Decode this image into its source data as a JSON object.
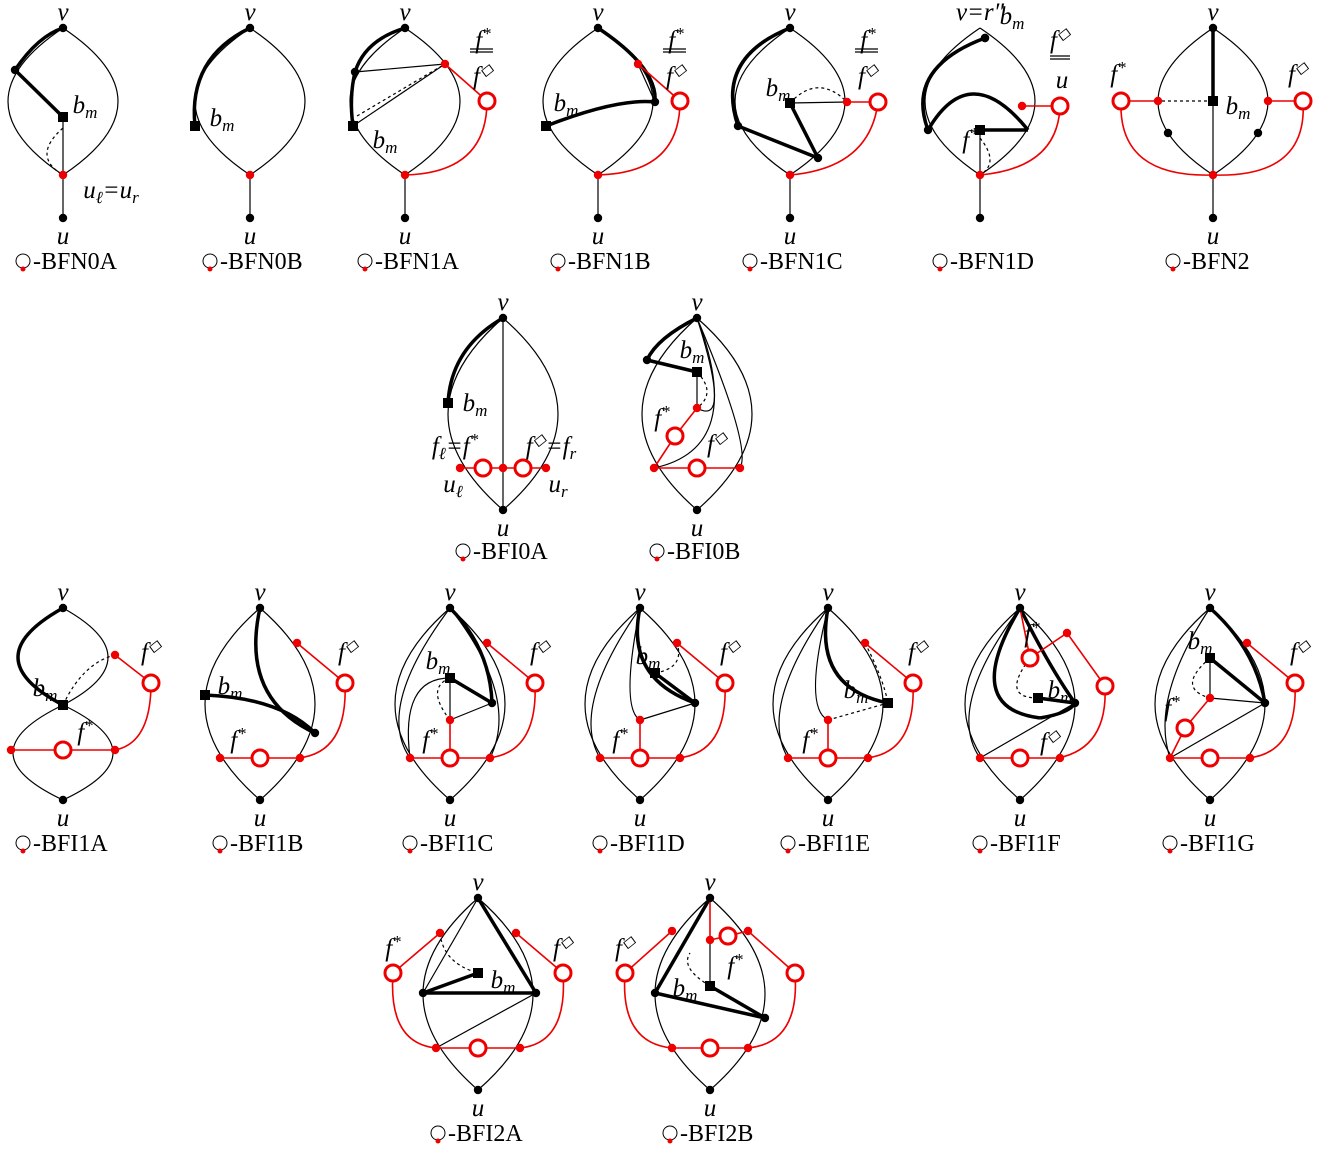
{
  "panels": [
    {
      "caption": "-BFN0A",
      "labels": [
        {
          "parts": [
            {
              "t": "v"
            }
          ]
        },
        {
          "parts": [
            {
              "t": "b"
            },
            {
              "sub": "m"
            }
          ]
        },
        {
          "parts": [
            {
              "t": "u"
            },
            {
              "sub": "ℓ"
            },
            {
              "t": "=u"
            },
            {
              "sub": "r"
            }
          ]
        },
        {
          "parts": [
            {
              "t": "u"
            }
          ]
        }
      ]
    },
    {
      "caption": "-BFN0B",
      "labels": [
        {
          "parts": [
            {
              "t": "v"
            }
          ]
        },
        {
          "parts": [
            {
              "t": "b"
            },
            {
              "sub": "m"
            }
          ]
        },
        {
          "parts": [
            {
              "t": "u"
            }
          ]
        }
      ]
    },
    {
      "caption": "-BFN1A",
      "labels": [
        {
          "parts": [
            {
              "t": "v"
            }
          ]
        },
        {
          "parts": [
            {
              "t": "b"
            },
            {
              "sub": "m"
            }
          ]
        },
        {
          "parts": [
            {
              "t": "f"
            },
            {
              "sup": "*"
            }
          ]
        },
        {
          "parts": [
            {
              "t": "f"
            },
            {
              "sup": "◇"
            }
          ]
        },
        {
          "parts": [
            {
              "t": "u"
            }
          ]
        }
      ]
    },
    {
      "caption": "-BFN1B",
      "labels": [
        {
          "parts": [
            {
              "t": "v"
            }
          ]
        },
        {
          "parts": [
            {
              "t": "b"
            },
            {
              "sub": "m"
            }
          ]
        },
        {
          "parts": [
            {
              "t": "f"
            },
            {
              "sup": "*"
            }
          ]
        },
        {
          "parts": [
            {
              "t": "f"
            },
            {
              "sup": "◇"
            }
          ]
        },
        {
          "parts": [
            {
              "t": "u"
            }
          ]
        }
      ]
    },
    {
      "caption": "-BFN1C",
      "labels": [
        {
          "parts": [
            {
              "t": "v"
            }
          ]
        },
        {
          "parts": [
            {
              "t": "b"
            },
            {
              "sub": "m"
            }
          ]
        },
        {
          "parts": [
            {
              "t": "f"
            },
            {
              "sup": "*"
            }
          ]
        },
        {
          "parts": [
            {
              "t": "f"
            },
            {
              "sup": "◇"
            }
          ]
        },
        {
          "parts": [
            {
              "t": "u"
            }
          ]
        }
      ]
    },
    {
      "caption": "-BFN1D",
      "labels": [
        {
          "parts": [
            {
              "t": "v=r″"
            }
          ]
        },
        {
          "parts": [
            {
              "t": "b"
            },
            {
              "sub": "m"
            }
          ]
        },
        {
          "parts": [
            {
              "t": "f"
            },
            {
              "sup": "*"
            }
          ]
        },
        {
          "parts": [
            {
              "t": "f"
            },
            {
              "sup": "◇"
            }
          ]
        },
        {
          "parts": [
            {
              "t": "u"
            }
          ]
        }
      ]
    },
    {
      "caption": "-BFN2",
      "labels": [
        {
          "parts": [
            {
              "t": "v"
            }
          ]
        },
        {
          "parts": [
            {
              "t": "f"
            },
            {
              "sup": "*"
            }
          ]
        },
        {
          "parts": [
            {
              "t": "b"
            },
            {
              "sub": "m"
            }
          ]
        },
        {
          "parts": [
            {
              "t": "f"
            },
            {
              "sup": "◇"
            }
          ]
        },
        {
          "parts": [
            {
              "t": "u"
            }
          ]
        }
      ]
    },
    {
      "caption": "-BFI0A",
      "labels": [
        {
          "parts": [
            {
              "t": "v"
            }
          ]
        },
        {
          "parts": [
            {
              "t": "b"
            },
            {
              "sub": "m"
            }
          ]
        },
        {
          "parts": [
            {
              "t": "f"
            },
            {
              "sub": "ℓ"
            },
            {
              "t": "=f"
            },
            {
              "sup": "*"
            }
          ]
        },
        {
          "parts": [
            {
              "t": "f"
            },
            {
              "sup": "◇"
            },
            {
              "t": "=f"
            },
            {
              "sub": "r"
            }
          ]
        },
        {
          "parts": [
            {
              "t": "u"
            },
            {
              "sub": "ℓ"
            }
          ]
        },
        {
          "parts": [
            {
              "t": "u"
            },
            {
              "sub": "r"
            }
          ]
        },
        {
          "parts": [
            {
              "t": "u"
            }
          ]
        }
      ]
    },
    {
      "caption": "-BFI0B",
      "labels": [
        {
          "parts": [
            {
              "t": "v"
            }
          ]
        },
        {
          "parts": [
            {
              "t": "b"
            },
            {
              "sub": "m"
            }
          ]
        },
        {
          "parts": [
            {
              "t": "f"
            },
            {
              "sup": "*"
            }
          ]
        },
        {
          "parts": [
            {
              "t": "f"
            },
            {
              "sup": "◇"
            }
          ]
        },
        {
          "parts": [
            {
              "t": "u"
            }
          ]
        }
      ]
    },
    {
      "caption": "-BFI1A",
      "labels": [
        {
          "parts": [
            {
              "t": "v"
            }
          ]
        },
        {
          "parts": [
            {
              "t": "b"
            },
            {
              "sub": "m"
            }
          ]
        },
        {
          "parts": [
            {
              "t": "f"
            },
            {
              "sup": "◇"
            }
          ]
        },
        {
          "parts": [
            {
              "t": "f"
            },
            {
              "sup": "*"
            }
          ]
        },
        {
          "parts": [
            {
              "t": "u"
            }
          ]
        }
      ]
    },
    {
      "caption": "-BFI1B",
      "labels": [
        {
          "parts": [
            {
              "t": "v"
            }
          ]
        },
        {
          "parts": [
            {
              "t": "b"
            },
            {
              "sub": "m"
            }
          ]
        },
        {
          "parts": [
            {
              "t": "f"
            },
            {
              "sup": "◇"
            }
          ]
        },
        {
          "parts": [
            {
              "t": "f"
            },
            {
              "sup": "*"
            }
          ]
        },
        {
          "parts": [
            {
              "t": "u"
            }
          ]
        }
      ]
    },
    {
      "caption": "-BFI1C",
      "labels": [
        {
          "parts": [
            {
              "t": "v"
            }
          ]
        },
        {
          "parts": [
            {
              "t": "b"
            },
            {
              "sub": "m"
            }
          ]
        },
        {
          "parts": [
            {
              "t": "f"
            },
            {
              "sup": "*"
            }
          ]
        },
        {
          "parts": [
            {
              "t": "f"
            },
            {
              "sup": "◇"
            }
          ]
        },
        {
          "parts": [
            {
              "t": "u"
            }
          ]
        }
      ]
    },
    {
      "caption": "-BFI1D",
      "labels": [
        {
          "parts": [
            {
              "t": "v"
            }
          ]
        },
        {
          "parts": [
            {
              "t": "b"
            },
            {
              "sub": "m"
            }
          ]
        },
        {
          "parts": [
            {
              "t": "f"
            },
            {
              "sup": "◇"
            }
          ]
        },
        {
          "parts": [
            {
              "t": "f"
            },
            {
              "sup": "*"
            }
          ]
        },
        {
          "parts": [
            {
              "t": "u"
            }
          ]
        }
      ]
    },
    {
      "caption": "-BFI1E",
      "labels": [
        {
          "parts": [
            {
              "t": "v"
            }
          ]
        },
        {
          "parts": [
            {
              "t": "b"
            },
            {
              "sub": "m"
            }
          ]
        },
        {
          "parts": [
            {
              "t": "f"
            },
            {
              "sup": "◇"
            }
          ]
        },
        {
          "parts": [
            {
              "t": "f"
            },
            {
              "sup": "*"
            }
          ]
        },
        {
          "parts": [
            {
              "t": "u"
            }
          ]
        }
      ]
    },
    {
      "caption": "-BFI1F",
      "labels": [
        {
          "parts": [
            {
              "t": "v"
            }
          ]
        },
        {
          "parts": [
            {
              "t": "f"
            },
            {
              "sup": "*"
            }
          ]
        },
        {
          "parts": [
            {
              "t": "b"
            },
            {
              "sub": "m"
            }
          ]
        },
        {
          "parts": [
            {
              "t": "f"
            },
            {
              "sup": "◇"
            }
          ]
        },
        {
          "parts": [
            {
              "t": "u"
            }
          ]
        }
      ]
    },
    {
      "caption": "-BFI1G",
      "labels": [
        {
          "parts": [
            {
              "t": "v"
            }
          ]
        },
        {
          "parts": [
            {
              "t": "b"
            },
            {
              "sub": "m"
            }
          ]
        },
        {
          "parts": [
            {
              "t": "f"
            },
            {
              "sup": "*"
            }
          ]
        },
        {
          "parts": [
            {
              "t": "f"
            },
            {
              "sup": "◇"
            }
          ]
        },
        {
          "parts": [
            {
              "t": "u"
            }
          ]
        }
      ]
    },
    {
      "caption": "-BFI2A",
      "labels": [
        {
          "parts": [
            {
              "t": "v"
            }
          ]
        },
        {
          "parts": [
            {
              "t": "f"
            },
            {
              "sup": "*"
            }
          ]
        },
        {
          "parts": [
            {
              "t": "b"
            },
            {
              "sub": "m"
            }
          ]
        },
        {
          "parts": [
            {
              "t": "f"
            },
            {
              "sup": "◇"
            }
          ]
        },
        {
          "parts": [
            {
              "t": "u"
            }
          ]
        }
      ]
    },
    {
      "caption": "-BFI2B",
      "labels": [
        {
          "parts": [
            {
              "t": "v"
            }
          ]
        },
        {
          "parts": [
            {
              "t": "f"
            },
            {
              "sup": "◇"
            }
          ]
        },
        {
          "parts": [
            {
              "t": "f"
            },
            {
              "sup": "*"
            }
          ]
        },
        {
          "parts": [
            {
              "t": "b"
            },
            {
              "sub": "m"
            }
          ]
        },
        {
          "parts": [
            {
              "t": "u"
            }
          ]
        }
      ]
    }
  ]
}
